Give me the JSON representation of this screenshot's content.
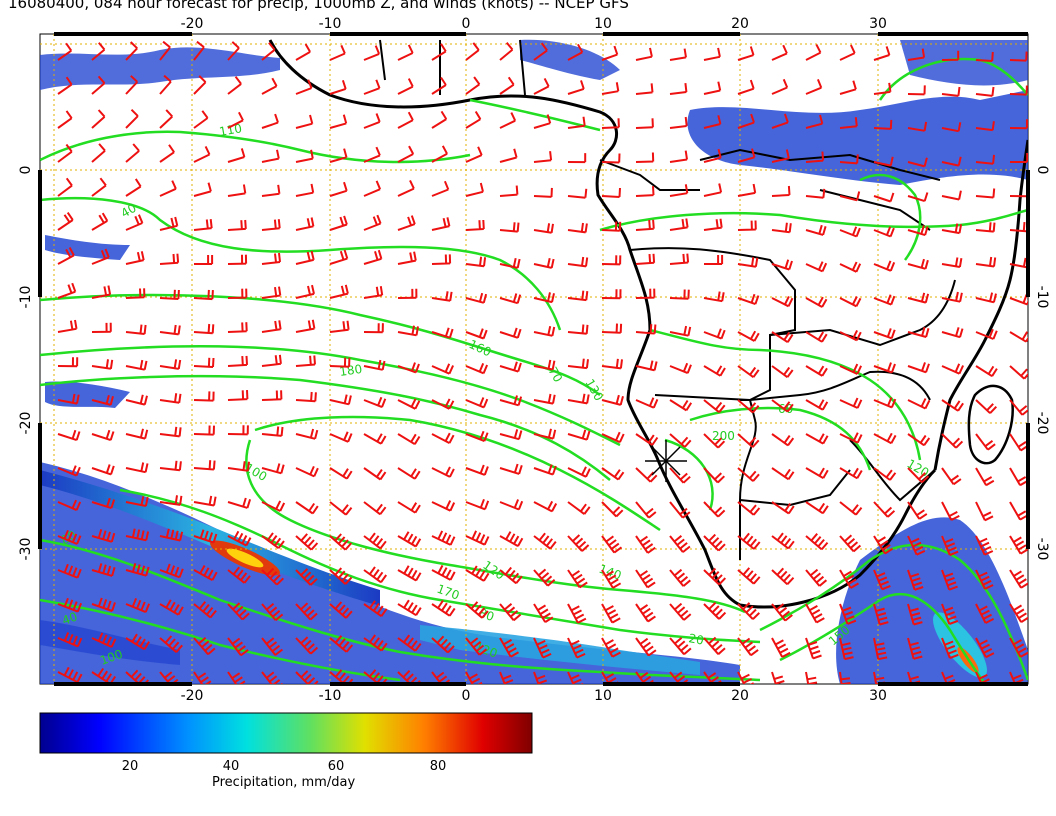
{
  "title": "16080400, 084 hour forecast for precip, 1000mb Z, and winds (knots) -- NCEP GFS",
  "axes": {
    "lon_ticks": [
      "-20",
      "-10",
      "0",
      "10",
      "20",
      "30"
    ],
    "lat_ticks": [
      "0",
      "-10",
      "-20",
      "-30"
    ],
    "lon_range": [
      -30,
      41
    ],
    "lat_range": [
      -40,
      10
    ]
  },
  "colors": {
    "contour": "#22dd22",
    "barb": "#ee1111",
    "coast": "#000000",
    "grid": "#e0b000"
  },
  "contour_labels": [
    "40",
    "110",
    "160",
    "180",
    "100",
    "70",
    "130",
    "120",
    "200",
    "60",
    "140",
    "170",
    "80",
    "120",
    "40",
    "20",
    "150",
    "120",
    "80",
    "100"
  ],
  "colorbar": {
    "label": "Precipitation, mm/day",
    "ticks": [
      "20",
      "40",
      "60",
      "80"
    ],
    "range": [
      0,
      98
    ]
  },
  "chart_data": {
    "type": "heatmap",
    "title": "16080400, 084 hour forecast for precip, 1000mb Z, and winds (knots) -- NCEP GFS",
    "xlabel": "",
    "ylabel": "",
    "x_ticks": [
      -20,
      -10,
      0,
      10,
      20,
      30
    ],
    "y_ticks": [
      0,
      -10,
      -20,
      -30
    ],
    "xlim": [
      -30,
      41
    ],
    "ylim": [
      -40,
      10
    ],
    "colorbar_label": "Precipitation, mm/day",
    "colorbar_ticks": [
      20,
      40,
      60,
      80
    ],
    "grid": true
  }
}
